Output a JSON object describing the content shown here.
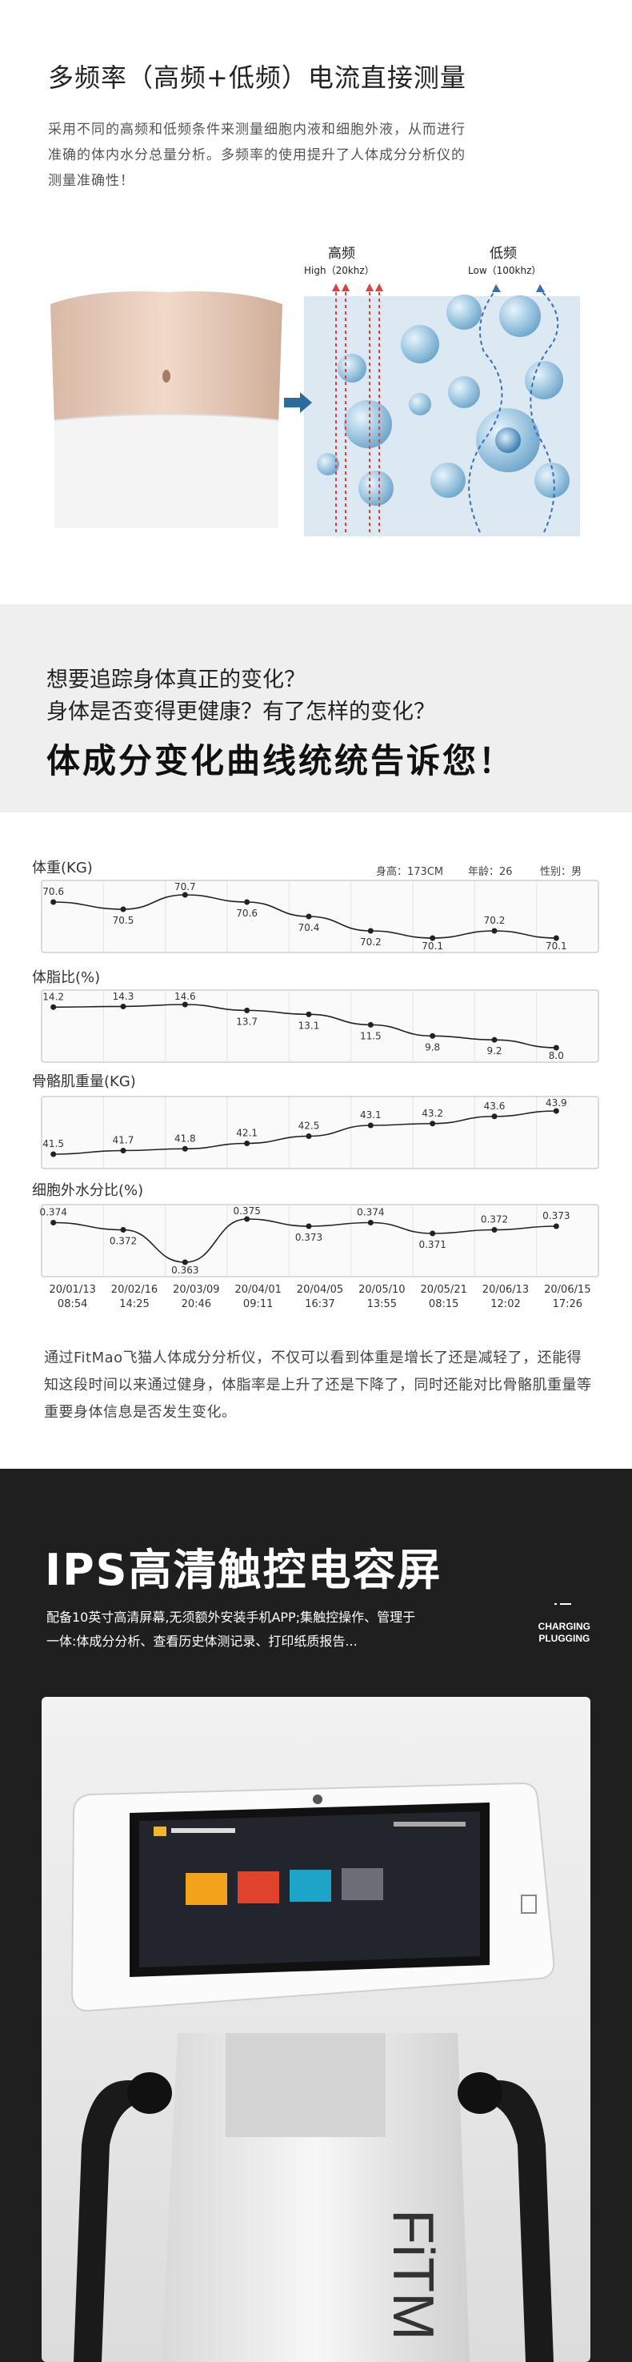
{
  "intro": {
    "title": "多频率（高频+低频）电流直接测量",
    "desc_lines": [
      "采用不同的高频和低频条件来测量细胞内液和细胞外液，从而进行",
      "准确的体内水分总量分析。多频率的使用提升了人体成分分析仪的",
      "测量准确性！"
    ],
    "high_label": "高频",
    "high_sub": "High（20khz）",
    "low_label": "低频",
    "low_sub": "Low（100khz）"
  },
  "promo": {
    "q1": "想要追踪身体真正的变化？",
    "q2": "身体是否变得更健康？有了怎样的变化？",
    "headline": "体成分变化曲线统统告诉您！"
  },
  "profile": {
    "height": "身高：173CM",
    "age": "年龄：26",
    "gender": "性别：男"
  },
  "chart_data": [
    {
      "type": "line",
      "title": "体重(KG)",
      "x": [
        "20/01/13 08:54",
        "20/02/16 14:25",
        "20/03/09 20:46",
        "20/04/01 09:11",
        "20/04/05 16:37",
        "20/05/10 13:55",
        "20/05/21 08:15",
        "20/06/13 12:02",
        "20/06/15 17:26"
      ],
      "values": [
        70.6,
        70.5,
        70.7,
        70.6,
        70.4,
        70.2,
        70.1,
        70.2,
        70.1
      ],
      "labels": [
        "70.6",
        "70.5",
        "70.7",
        "70.6",
        "70.4",
        "70.2",
        "70.1",
        "70.2",
        "70.1"
      ]
    },
    {
      "type": "line",
      "title": "体脂比(%)",
      "x": [
        "20/01/13 08:54",
        "20/02/16 14:25",
        "20/03/09 20:46",
        "20/04/01 09:11",
        "20/04/05 16:37",
        "20/05/10 13:55",
        "20/05/21 08:15",
        "20/06/13 12:02",
        "20/06/15 17:26"
      ],
      "values": [
        14.2,
        14.3,
        14.6,
        13.7,
        13.1,
        11.5,
        9.8,
        9.2,
        8.0
      ],
      "labels": [
        "14.2",
        "14.3",
        "14.6",
        "13.7",
        "13.1",
        "11.5",
        "9.8",
        "9.2",
        "8.0"
      ]
    },
    {
      "type": "line",
      "title": "骨骼肌重量(KG)",
      "x": [
        "20/01/13 08:54",
        "20/02/16 14:25",
        "20/03/09 20:46",
        "20/04/01 09:11",
        "20/04/05 16:37",
        "20/05/10 13:55",
        "20/05/21 08:15",
        "20/06/13 12:02",
        "20/06/15 17:26"
      ],
      "values": [
        41.5,
        41.7,
        41.8,
        42.1,
        42.5,
        43.1,
        43.2,
        43.6,
        43.9
      ],
      "labels": [
        "41.5",
        "41.7",
        "41.8",
        "42.1",
        "42.5",
        "43.1",
        "43.2",
        "43.6",
        "43.9"
      ]
    },
    {
      "type": "line",
      "title": "细胞外水分比(%)",
      "x": [
        "20/01/13 08:54",
        "20/02/16 14:25",
        "20/03/09 20:46",
        "20/04/01 09:11",
        "20/04/05 16:37",
        "20/05/10 13:55",
        "20/05/21 08:15",
        "20/06/13 12:02",
        "20/06/15 17:26"
      ],
      "values": [
        0.374,
        0.372,
        0.363,
        0.375,
        0.373,
        0.374,
        0.371,
        0.372,
        0.373
      ],
      "labels": [
        "0.374",
        "0.372",
        "0.363",
        "0.375",
        "0.373",
        "0.374",
        "0.371",
        "0.372",
        "0.373"
      ]
    }
  ],
  "x_date_labels": [
    "20/01/13",
    "20/02/16",
    "20/03/09",
    "20/04/01",
    "20/04/05",
    "20/05/10",
    "20/05/21",
    "20/06/13",
    "20/06/15"
  ],
  "x_time_labels": [
    "08:54",
    "14:25",
    "20:46",
    "09:11",
    "16:37",
    "13:55",
    "08:15",
    "12:02",
    "17:26"
  ],
  "summary": "通过FitMao飞猫人体成分分析仪，不仅可以看到体重是增长了还是减轻了，还能得知这段时间以来通过健身，体脂率是上升了还是下降了，同时还能对比骨骼肌重量等重要身体信息是否发生变化。",
  "screen": {
    "headline": "IPS高清触控电容屏",
    "desc1": "配备10英寸高清屏幕,无须额外安装手机APP;集触控操作、管理于",
    "desc2": "一体:体成分分析、查看历史体测记录、打印纸质报告...",
    "charging1": "CHARGING",
    "charging2": "PLUGGING",
    "brand": "FiTM"
  },
  "colors": {
    "line": "#222222",
    "grid_border": "#cfcfcf",
    "dark_bg": "#1f1f1f",
    "arrow_red": "#e04040",
    "arrow_blue": "#3a6fb5"
  }
}
